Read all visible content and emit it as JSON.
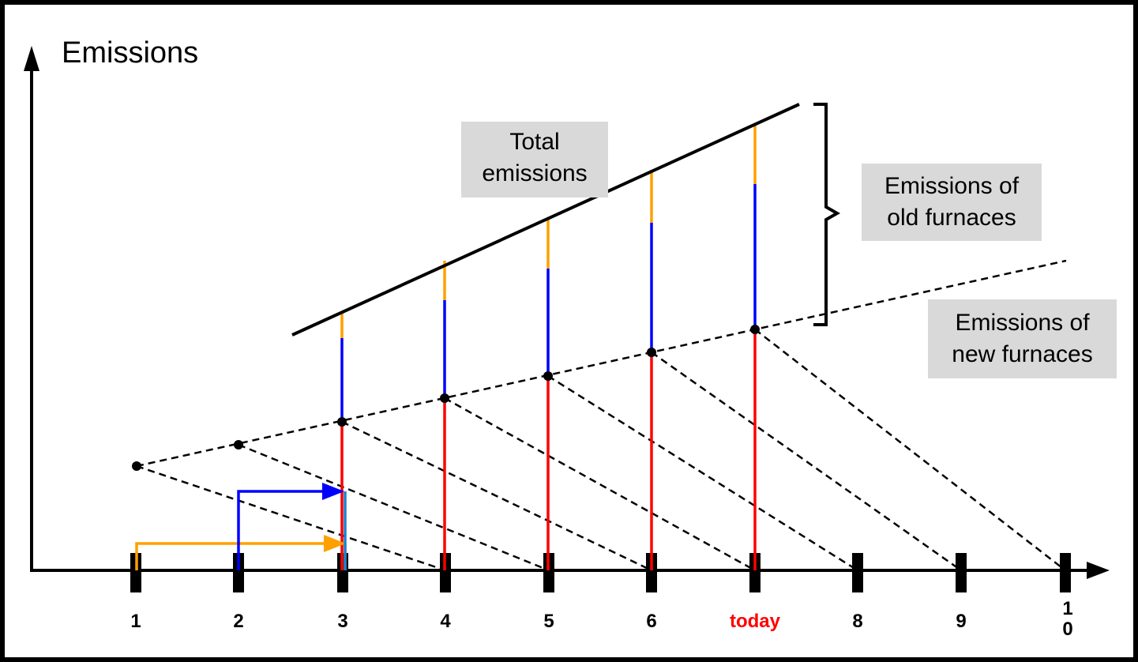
{
  "y_axis_label": "Emissions",
  "labels": {
    "total": "Total\nemissions",
    "old": "Emissions of\nold furnaces",
    "new": "Emissions of\nnew furnaces"
  },
  "ticks": [
    "1",
    "2",
    "3",
    "4",
    "5",
    "6",
    "today",
    "8",
    "9",
    "1\n0"
  ],
  "colors": {
    "orange": "#ffa000",
    "blue": "#0000ff",
    "red": "#ff0000",
    "black": "#000000",
    "today": "#ff0000",
    "label_bg": "#d9d9d9"
  }
}
